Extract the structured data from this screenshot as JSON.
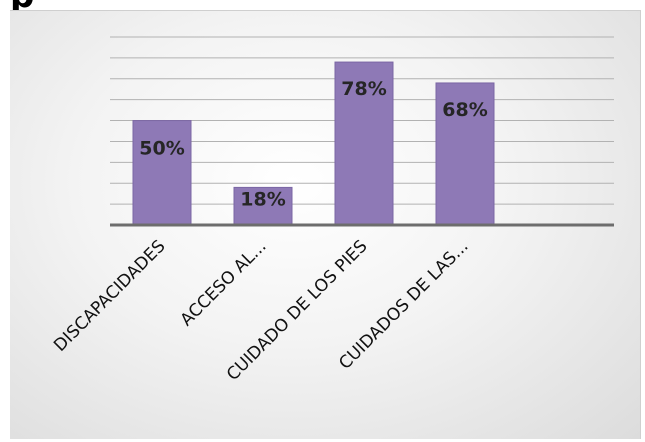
{
  "header": {
    "partial_title": "p"
  },
  "chart_data": {
    "type": "bar",
    "title": "",
    "categories": [
      "DISCAPACIDADES",
      "ACCESO AL...",
      "CUIDADO DE LOS PIES",
      "CUIDADOS DE LAS..."
    ],
    "values": [
      50,
      18,
      78,
      68
    ],
    "data_labels": [
      "50%",
      "18%",
      "78%",
      "68%"
    ],
    "ylim": [
      0,
      90
    ],
    "grid": true,
    "legend": "none",
    "colors": {
      "bar": "#8e79b6",
      "axis": "#6d6d6d",
      "grid": "#b2b2b2"
    }
  }
}
